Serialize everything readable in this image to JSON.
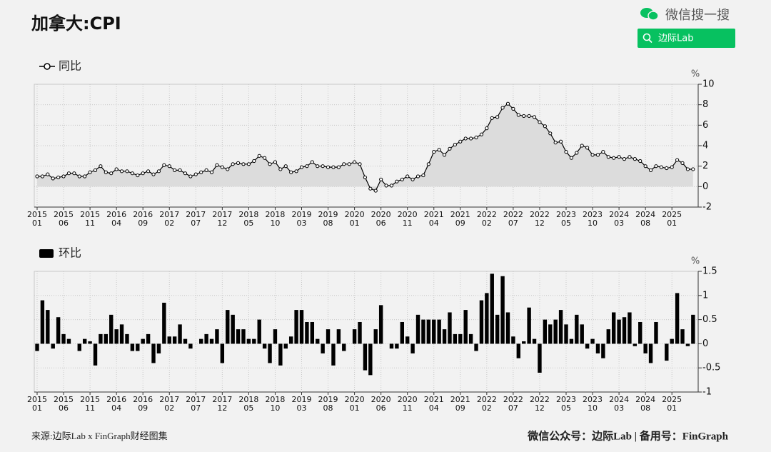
{
  "header": {
    "title": "加拿大:CPI",
    "search_label": "微信搜一搜",
    "search_button": "边际Lab"
  },
  "chart_data": [
    {
      "type": "line",
      "y_unit": "%",
      "categories": [
        "2015\n01",
        null,
        null,
        null,
        null,
        "2015\n06",
        null,
        null,
        null,
        null,
        "2015\n11",
        null,
        null,
        null,
        null,
        "2016\n04",
        null,
        null,
        null,
        null,
        "2016\n09",
        null,
        null,
        null,
        null,
        "2017\n02",
        null,
        null,
        null,
        null,
        "2017\n07",
        null,
        null,
        null,
        null,
        "2017\n12",
        null,
        null,
        null,
        null,
        "2018\n05",
        null,
        null,
        null,
        null,
        "2018\n10",
        null,
        null,
        null,
        null,
        "2019\n03",
        null,
        null,
        null,
        null,
        "2019\n08",
        null,
        null,
        null,
        null,
        "2020\n01",
        null,
        null,
        null,
        null,
        "2020\n06",
        null,
        null,
        null,
        null,
        "2020\n11",
        null,
        null,
        null,
        null,
        "2021\n04",
        null,
        null,
        null,
        null,
        "2021\n09",
        null,
        null,
        null,
        null,
        "2022\n02",
        null,
        null,
        null,
        null,
        "2022\n07",
        null,
        null,
        null,
        null,
        "2022\n12",
        null,
        null,
        null,
        null,
        "2023\n05",
        null,
        null,
        null,
        null,
        "2023\n10",
        null,
        null,
        null,
        null,
        "2024\n03",
        null,
        null,
        null,
        null,
        "2024\n08",
        null,
        null,
        null,
        null,
        "2025\n01",
        null,
        null,
        null,
        null
      ],
      "series": [
        {
          "name": "同比",
          "color": "#000000",
          "fill": "#dcdcdc",
          "values": [
            1.0,
            1.0,
            1.2,
            0.8,
            0.9,
            1.0,
            1.3,
            1.3,
            1.0,
            1.0,
            1.4,
            1.6,
            2.0,
            1.4,
            1.3,
            1.7,
            1.5,
            1.5,
            1.3,
            1.1,
            1.3,
            1.5,
            1.2,
            1.5,
            2.1,
            2.0,
            1.6,
            1.6,
            1.3,
            1.0,
            1.2,
            1.4,
            1.6,
            1.4,
            2.1,
            1.9,
            1.7,
            2.2,
            2.3,
            2.2,
            2.2,
            2.5,
            3.0,
            2.8,
            2.2,
            2.4,
            1.7,
            2.0,
            1.4,
            1.5,
            1.9,
            2.0,
            2.4,
            2.0,
            2.0,
            1.9,
            1.9,
            1.9,
            2.2,
            2.2,
            2.4,
            2.2,
            0.9,
            -0.2,
            -0.4,
            0.7,
            0.1,
            0.1,
            0.5,
            0.7,
            1.0,
            0.7,
            1.0,
            1.1,
            2.2,
            3.4,
            3.6,
            3.1,
            3.7,
            4.1,
            4.4,
            4.7,
            4.7,
            4.8,
            5.1,
            5.7,
            6.7,
            6.8,
            7.7,
            8.1,
            7.6,
            7.0,
            6.9,
            6.9,
            6.8,
            6.3,
            5.9,
            5.2,
            4.3,
            4.4,
            3.4,
            2.8,
            3.3,
            4.0,
            3.8,
            3.1,
            3.1,
            3.4,
            2.9,
            2.8,
            2.9,
            2.7,
            2.9,
            2.7,
            2.5,
            2.0,
            1.6,
            2.0,
            1.9,
            1.8,
            1.9,
            2.6,
            2.3,
            1.7,
            1.7
          ]
        }
      ],
      "ylim": [
        -2,
        10
      ],
      "yticks": [
        -2,
        0,
        2,
        4,
        6,
        8,
        10
      ],
      "grid": true
    },
    {
      "type": "bar",
      "y_unit": "%",
      "categories": [
        "2015\n01",
        null,
        null,
        null,
        null,
        "2015\n06",
        null,
        null,
        null,
        null,
        "2015\n11",
        null,
        null,
        null,
        null,
        "2016\n04",
        null,
        null,
        null,
        null,
        "2016\n09",
        null,
        null,
        null,
        null,
        "2017\n02",
        null,
        null,
        null,
        null,
        "2017\n07",
        null,
        null,
        null,
        null,
        "2017\n12",
        null,
        null,
        null,
        null,
        "2018\n05",
        null,
        null,
        null,
        null,
        "2018\n10",
        null,
        null,
        null,
        null,
        "2019\n03",
        null,
        null,
        null,
        null,
        "2019\n08",
        null,
        null,
        null,
        null,
        "2020\n01",
        null,
        null,
        null,
        null,
        "2020\n06",
        null,
        null,
        null,
        null,
        "2020\n11",
        null,
        null,
        null,
        null,
        "2021\n04",
        null,
        null,
        null,
        null,
        "2021\n09",
        null,
        null,
        null,
        null,
        "2022\n02",
        null,
        null,
        null,
        null,
        "2022\n07",
        null,
        null,
        null,
        null,
        "2022\n12",
        null,
        null,
        null,
        null,
        "2023\n05",
        null,
        null,
        null,
        null,
        "2023\n10",
        null,
        null,
        null,
        null,
        "2024\n03",
        null,
        null,
        null,
        null,
        "2024\n08",
        null,
        null,
        null,
        null,
        "2025\n01",
        null,
        null,
        null,
        null
      ],
      "series": [
        {
          "name": "环比",
          "color": "#000000",
          "values": [
            -0.15,
            0.9,
            0.7,
            -0.1,
            0.55,
            0.2,
            0.1,
            0.0,
            -0.15,
            0.1,
            0.05,
            -0.45,
            0.2,
            0.2,
            0.6,
            0.3,
            0.4,
            0.2,
            -0.15,
            -0.15,
            0.1,
            0.2,
            -0.4,
            -0.2,
            0.85,
            0.15,
            0.15,
            0.4,
            0.1,
            -0.1,
            0.0,
            0.1,
            0.2,
            0.1,
            0.3,
            -0.4,
            0.7,
            0.6,
            0.3,
            0.3,
            0.1,
            0.1,
            0.5,
            -0.1,
            -0.4,
            0.3,
            -0.45,
            -0.1,
            0.15,
            0.7,
            0.7,
            0.45,
            0.45,
            0.1,
            -0.2,
            0.3,
            -0.45,
            0.3,
            -0.15,
            0.0,
            0.3,
            0.45,
            -0.55,
            -0.65,
            0.3,
            0.8,
            0.0,
            -0.1,
            -0.1,
            0.45,
            0.15,
            -0.2,
            0.6,
            0.5,
            0.5,
            0.5,
            0.5,
            0.3,
            0.65,
            0.2,
            0.2,
            0.7,
            0.2,
            -0.15,
            0.9,
            1.05,
            1.45,
            0.6,
            1.4,
            0.65,
            0.15,
            -0.3,
            0.05,
            0.75,
            0.1,
            -0.6,
            0.5,
            0.4,
            0.5,
            0.7,
            0.4,
            0.1,
            0.6,
            0.4,
            -0.1,
            0.1,
            -0.2,
            -0.3,
            0.3,
            0.65,
            0.5,
            0.55,
            0.65,
            -0.05,
            0.45,
            -0.2,
            -0.4,
            0.45,
            0.0,
            -0.35,
            0.1,
            1.05,
            0.3,
            -0.05,
            0.6
          ]
        }
      ],
      "ylim": [
        -1,
        1.5
      ],
      "yticks": [
        -1,
        -0.5,
        0,
        0.5,
        1,
        1.5
      ],
      "grid": true
    }
  ],
  "footer": {
    "source": "来源:边际Lab x FinGraph财经图集",
    "account": "微信公众号：边际Lab  |  备用号：FinGraph"
  }
}
